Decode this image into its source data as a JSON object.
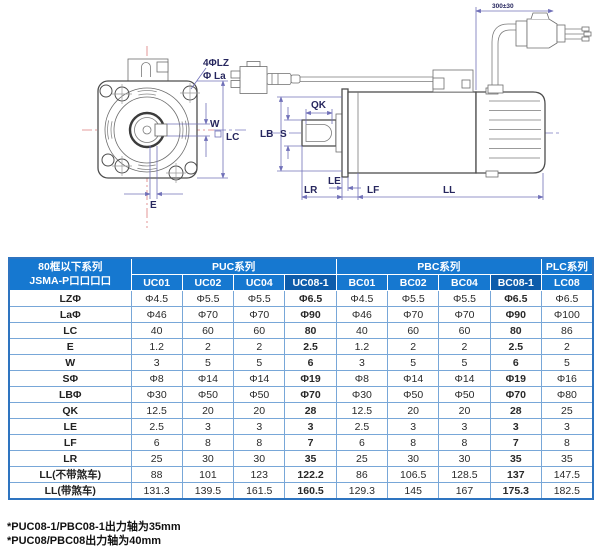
{
  "diagram": {
    "front": {
      "hole_label": "4ΦLZ",
      "bolt_circle_label": "Φ La",
      "key_width_label": "W",
      "frame_label": "LC",
      "key_offset_label": "E"
    },
    "side": {
      "key_length_label": "QK",
      "shaft_dia_label": "S",
      "pilot_dia_label": "LB",
      "boss_label": "LE",
      "shaft_len_label": "LR",
      "flange_label": "LF",
      "body_len_label": "LL",
      "cable_length": "300±30"
    }
  },
  "table": {
    "corner_header_line1": "80框以下系列",
    "corner_header_line2": "JSMA-P口口口口",
    "groups": [
      {
        "label": "PUC系列",
        "span": 4
      },
      {
        "label": "PBC系列",
        "span": 4
      },
      {
        "label": "PLC系列",
        "span": 1
      }
    ],
    "columns": [
      "UC01",
      "UC02",
      "UC04",
      "UC08-1",
      "BC01",
      "BC02",
      "BC04",
      "BC08-1",
      "LC08"
    ],
    "highlight_columns": [
      "UC08-1",
      "BC08-1"
    ],
    "rows": [
      {
        "label": "LZΦ",
        "values": [
          "Φ4.5",
          "Φ5.5",
          "Φ5.5",
          "Φ6.5",
          "Φ4.5",
          "Φ5.5",
          "Φ5.5",
          "Φ6.5",
          "Φ6.5"
        ]
      },
      {
        "label": "LaΦ",
        "values": [
          "Φ46",
          "Φ70",
          "Φ70",
          "Φ90",
          "Φ46",
          "Φ70",
          "Φ70",
          "Φ90",
          "Φ100"
        ]
      },
      {
        "label": "LC",
        "values": [
          "40",
          "60",
          "60",
          "80",
          "40",
          "60",
          "60",
          "80",
          "86"
        ]
      },
      {
        "label": "E",
        "values": [
          "1.2",
          "2",
          "2",
          "2.5",
          "1.2",
          "2",
          "2",
          "2.5",
          "2"
        ]
      },
      {
        "label": "W",
        "values": [
          "3",
          "5",
          "5",
          "6",
          "3",
          "5",
          "5",
          "6",
          "5"
        ]
      },
      {
        "label": "SΦ",
        "values": [
          "Φ8",
          "Φ14",
          "Φ14",
          "Φ19",
          "Φ8",
          "Φ14",
          "Φ14",
          "Φ19",
          "Φ16"
        ]
      },
      {
        "label": "LBΦ",
        "values": [
          "Φ30",
          "Φ50",
          "Φ50",
          "Φ70",
          "Φ30",
          "Φ50",
          "Φ50",
          "Φ70",
          "Φ80"
        ]
      },
      {
        "label": "QK",
        "values": [
          "12.5",
          "20",
          "20",
          "28",
          "12.5",
          "20",
          "20",
          "28",
          "25"
        ]
      },
      {
        "label": "LE",
        "values": [
          "2.5",
          "3",
          "3",
          "3",
          "2.5",
          "3",
          "3",
          "3",
          "3"
        ]
      },
      {
        "label": "LF",
        "values": [
          "6",
          "8",
          "8",
          "7",
          "6",
          "8",
          "8",
          "7",
          "8"
        ]
      },
      {
        "label": "LR",
        "values": [
          "25",
          "30",
          "30",
          "35",
          "25",
          "30",
          "30",
          "35",
          "35"
        ]
      },
      {
        "label": "LL(不带煞车)",
        "values": [
          "88",
          "101",
          "123",
          "122.2",
          "86",
          "106.5",
          "128.5",
          "137",
          "147.5"
        ]
      },
      {
        "label": "LL(带煞车)",
        "values": [
          "131.3",
          "139.5",
          "161.5",
          "160.5",
          "129.3",
          "145",
          "167",
          "175.3",
          "182.5"
        ]
      }
    ]
  },
  "footnotes": [
    "*PUC08-1/PBC08-1出力轴为35mm",
    "*PUC08/PBC08出力轴为40mm"
  ],
  "colors": {
    "header_bg": "#1678d0",
    "header_dark_bg": "#0d5cab",
    "grid_border": "#78a7d8",
    "outer_border": "#2e74c0",
    "dimension_lines": "#7070b8",
    "centerline_red": "#dd7d7d"
  }
}
